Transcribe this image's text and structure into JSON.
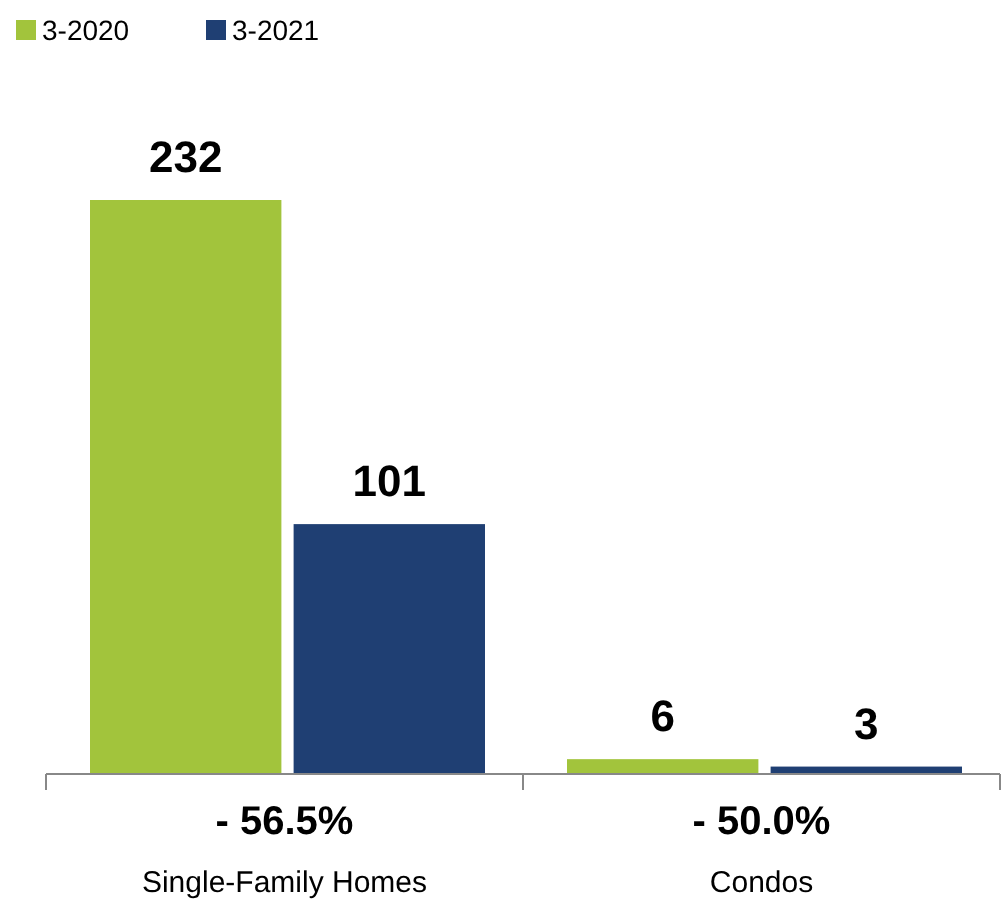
{
  "chart_data": {
    "type": "bar",
    "categories": [
      "Single-Family Homes",
      "Condos"
    ],
    "series": [
      {
        "name": "3-2020",
        "color": "#a2c43c",
        "values": [
          232,
          6
        ]
      },
      {
        "name": "3-2021",
        "color": "#1f3f73",
        "values": [
          101,
          3
        ]
      }
    ],
    "data_labels": true,
    "legend": "top left",
    "annotations": [
      "- 56.5%",
      "- 50.0%"
    ]
  }
}
